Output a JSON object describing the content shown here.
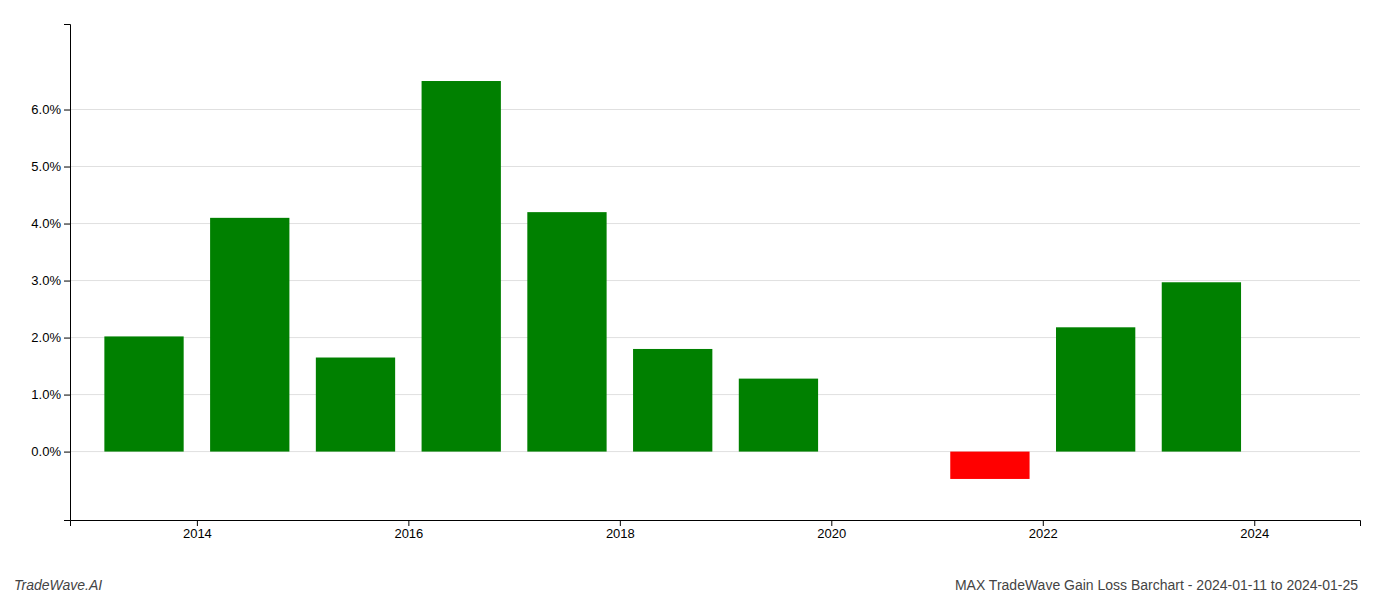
{
  "chart_data": {
    "type": "bar",
    "title": "MAX TradeWave Gain Loss Barchart - 2024-01-11 to 2024-01-25",
    "annotations": [
      "TradeWave.AI"
    ],
    "x": [
      2013.5,
      2014.5,
      2015.5,
      2016.5,
      2017.5,
      2018.5,
      2019.5,
      2021.5,
      2022.5,
      2023.5
    ],
    "values": [
      0.0202,
      0.041,
      0.0165,
      0.065,
      0.042,
      0.018,
      0.0128,
      -0.0048,
      0.0218,
      0.0297
    ],
    "colors": [
      "#008000",
      "#008000",
      "#008000",
      "#008000",
      "#008000",
      "#008000",
      "#008000",
      "#ff0000",
      "#008000",
      "#008000"
    ],
    "xlim": [
      2012.8,
      2025.0
    ],
    "xticks": [
      2014,
      2016,
      2018,
      2020,
      2022,
      2024
    ],
    "ylim": [
      -0.012,
      0.075
    ],
    "yticks": [
      {
        "value": 0.0,
        "label": "0.0%"
      },
      {
        "value": 0.01,
        "label": "1.0%"
      },
      {
        "value": 0.02,
        "label": "2.0%"
      },
      {
        "value": 0.03,
        "label": "3.0%"
      },
      {
        "value": 0.04,
        "label": "4.0%"
      },
      {
        "value": 0.05,
        "label": "5.0%"
      },
      {
        "value": 0.06,
        "label": "6.0%"
      }
    ],
    "grid": true
  }
}
